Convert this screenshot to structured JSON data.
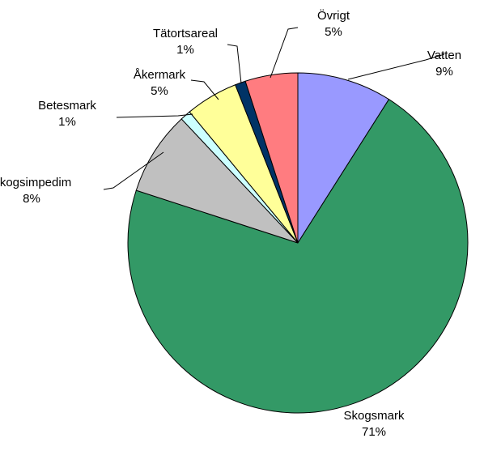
{
  "chart_data": {
    "type": "pie",
    "title": "",
    "slices": [
      {
        "label": "Vatten",
        "value": 9,
        "pct_label": "9%",
        "color": "#9999FF"
      },
      {
        "label": "Skogsmark",
        "value": 71,
        "pct_label": "71%",
        "color": "#339966"
      },
      {
        "label": "Skogsimpedim",
        "value": 8,
        "pct_label": "8%",
        "color": "#C0C0C0"
      },
      {
        "label": "Betesmark",
        "value": 1,
        "pct_label": "1%",
        "color": "#CCFFFF"
      },
      {
        "label": "Åkermark",
        "value": 5,
        "pct_label": "5%",
        "color": "#FFFF99"
      },
      {
        "label": "Tätortsareal",
        "value": 1,
        "pct_label": "1%",
        "color": "#003366"
      },
      {
        "label": "Övrigt",
        "value": 5,
        "pct_label": "5%",
        "color": "#FF7C80"
      }
    ],
    "start": "12 o'clock",
    "direction": "clockwise",
    "legend": "none",
    "label_style": "outside with leader lines"
  }
}
